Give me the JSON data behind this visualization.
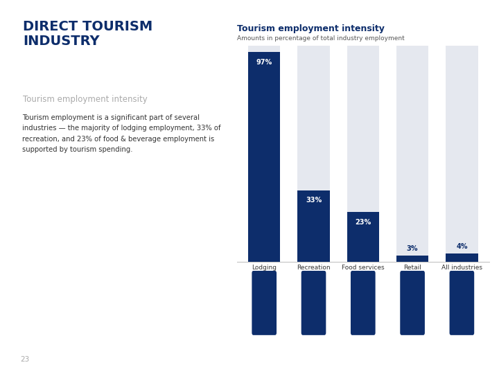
{
  "title_main": "DIRECT TOURISM\nINDUSTRY",
  "subtitle_main": "Tourism employment intensity",
  "chart_title": "Tourism employment intensity",
  "chart_subtitle": "Amounts in percentage of total industry employment",
  "categories": [
    "Lodging",
    "Recreation",
    "Food services",
    "Retail",
    "All industries"
  ],
  "values": [
    97,
    33,
    23,
    3,
    4
  ],
  "max_value": 100,
  "bar_color": "#0d2d6b",
  "bg_bar_color": "#e5e8ef",
  "background_color": "#ffffff",
  "header_color": "#0d2d6b",
  "title_color": "#0d2d6b",
  "subtitle_color": "#aaaaaa",
  "chart_title_color": "#0d2d6b",
  "chart_subtitle_color": "#555555",
  "value_label_color_inside": "#ffffff",
  "value_label_color_outside": "#0d2d6b",
  "page_number": "23",
  "page_number_color": "#aaaaaa"
}
